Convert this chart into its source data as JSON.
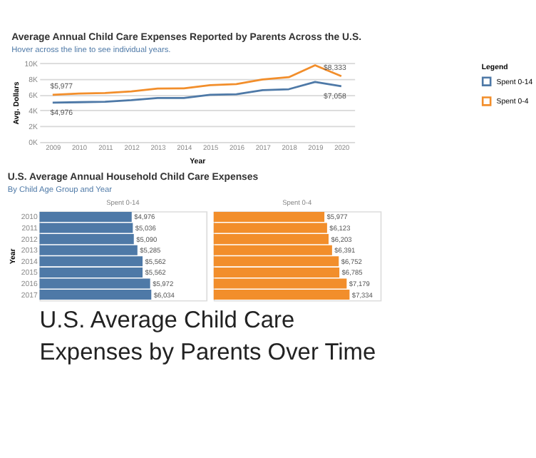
{
  "chart_data": [
    {
      "type": "line",
      "title": "Average Annual Child Care Expenses Reported by Parents Across the U.S.",
      "subtitle": "Hover across the line to see individual years.",
      "xlabel": "Year",
      "ylabel": "Avg. Dollars",
      "legend_title": "Legend",
      "legend": "top right",
      "grid": "y",
      "x": [
        2009,
        2010,
        2011,
        2012,
        2013,
        2014,
        2015,
        2016,
        2017,
        2018,
        2019,
        2020
      ],
      "xlim": [
        2008.5,
        2020.5
      ],
      "xticks": [
        2009,
        2010,
        2011,
        2012,
        2013,
        2014,
        2015,
        2016,
        2017,
        2018,
        2019,
        2020
      ],
      "ylim": [
        0,
        10000
      ],
      "yticks": [
        {
          "value": 0,
          "label": "0K"
        },
        {
          "value": 2000,
          "label": "2K"
        },
        {
          "value": 4000,
          "label": "4K"
        },
        {
          "value": 6000,
          "label": "6K"
        },
        {
          "value": 8000,
          "label": "8K"
        },
        {
          "value": 10000,
          "label": "10K"
        }
      ],
      "series": [
        {
          "name": "Spent 0-14",
          "color": "#4e79a7",
          "values": [
            4976,
            5036,
            5090,
            5285,
            5562,
            5562,
            5972,
            6034,
            6550,
            6680,
            7600,
            7058
          ],
          "value_labels": [
            "$4,976",
            null,
            null,
            null,
            null,
            null,
            null,
            null,
            null,
            null,
            null,
            "$7,058"
          ]
        },
        {
          "name": "Spent 0-4",
          "color": "#f28e2b",
          "values": [
            5977,
            6123,
            6203,
            6391,
            6752,
            6785,
            7179,
            7334,
            7900,
            8200,
            9700,
            8333
          ],
          "value_labels": [
            "$5,977",
            null,
            null,
            null,
            null,
            null,
            null,
            null,
            null,
            null,
            null,
            "$8,333"
          ]
        }
      ]
    },
    {
      "type": "bar",
      "orientation": "horizontal",
      "title": "U.S. Average Annual Household Child Care Expenses",
      "subtitle": "By Child Age Group and Year",
      "ylabel": "Year",
      "tick_labels": "y",
      "categories": [
        "2010",
        "2011",
        "2012",
        "2013",
        "2014",
        "2015",
        "2016",
        "2017"
      ],
      "xlim": [
        0,
        9000
      ],
      "series": [
        {
          "name": "Spent 0-14",
          "color": "#4e79a7",
          "values": [
            4976,
            5036,
            5090,
            5285,
            5562,
            5562,
            5972,
            6034
          ],
          "value_labels": [
            "$4,976",
            "$5,036",
            "$5,090",
            "$5,285",
            "$5,562",
            "$5,562",
            "$5,972",
            "$6,034"
          ]
        }
      ]
    },
    {
      "type": "bar",
      "orientation": "horizontal",
      "tick_labels": false,
      "categories": [
        "2010",
        "2011",
        "2012",
        "2013",
        "2014",
        "2015",
        "2016",
        "2017"
      ],
      "xlim": [
        0,
        9000
      ],
      "series": [
        {
          "name": "Spent 0-4",
          "color": "#f28e2b",
          "values": [
            5977,
            6123,
            6203,
            6391,
            6752,
            6785,
            7179,
            7334
          ],
          "value_labels": [
            "$5,977",
            "$6,123",
            "$6,203",
            "$6,391",
            "$6,752",
            "$6,785",
            "$7,179",
            "$7,334"
          ]
        }
      ]
    },
    {
      "type": "other",
      "title": "U.S. Average Child Care Expenses by Parents Over Time"
    }
  ]
}
